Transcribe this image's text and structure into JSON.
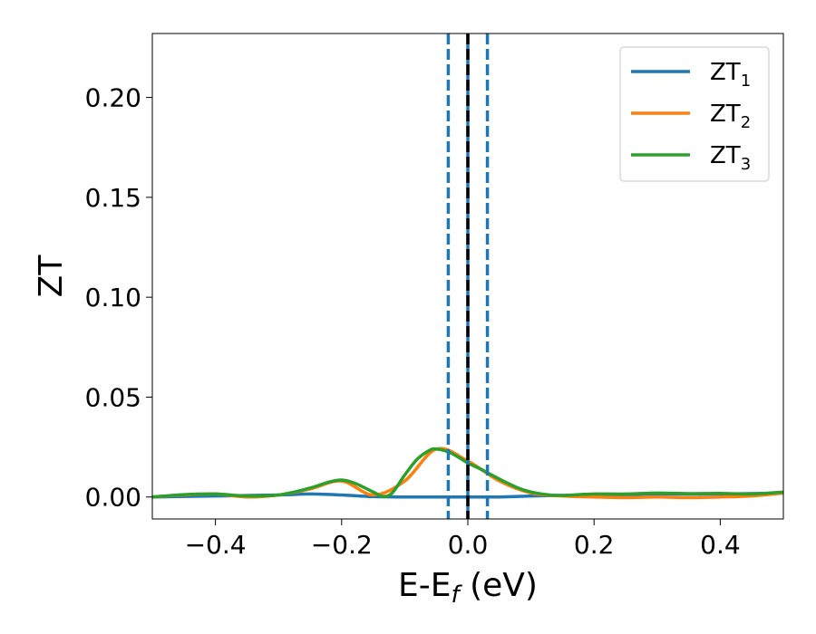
{
  "chart_data": {
    "type": "line",
    "xlabel": {
      "main": "E-E",
      "sub": "f",
      "suffix": " (eV)"
    },
    "ylabel": "ZT",
    "xlim": [
      -0.5,
      0.5
    ],
    "ylim": [
      -0.011,
      0.232
    ],
    "xticks": [
      {
        "value": -0.4,
        "label": "−0.4"
      },
      {
        "value": -0.2,
        "label": "−0.2"
      },
      {
        "value": 0.0,
        "label": "0.0"
      },
      {
        "value": 0.2,
        "label": "0.2"
      },
      {
        "value": 0.4,
        "label": "0.4"
      }
    ],
    "yticks": [
      {
        "value": 0.0,
        "label": "0.00"
      },
      {
        "value": 0.05,
        "label": "0.05"
      },
      {
        "value": 0.1,
        "label": "0.10"
      },
      {
        "value": 0.15,
        "label": "0.15"
      },
      {
        "value": 0.2,
        "label": "0.20"
      }
    ],
    "grid": false,
    "legend_position": "top-right",
    "vlines": [
      {
        "x": -0.031,
        "style": "dashed",
        "color": "#1f77b4"
      },
      {
        "x": 0.031,
        "style": "dashed",
        "color": "#1f77b4"
      },
      {
        "x": 0.0,
        "style": "solid",
        "color": "#1f77b4"
      },
      {
        "x": 0.0,
        "style": "dashed",
        "color": "#000000"
      }
    ],
    "series": [
      {
        "name": "ZT",
        "sub": "1",
        "color": "#1f77b4",
        "x": [
          -0.5,
          -0.4,
          -0.3,
          -0.25,
          -0.2,
          -0.15,
          -0.1,
          -0.05,
          0.0,
          0.05,
          0.1,
          0.15,
          0.2,
          0.25,
          0.3,
          0.4,
          0.5
        ],
        "y": [
          0.0,
          0.0005,
          0.001,
          0.0015,
          0.001,
          0.0002,
          0.0,
          0.0,
          0.0,
          0.0,
          0.0005,
          0.0008,
          0.001,
          0.0012,
          0.0015,
          0.0015,
          0.002
        ]
      },
      {
        "name": "ZT",
        "sub": "2",
        "color": "#ff7f0e",
        "x": [
          -0.5,
          -0.45,
          -0.4,
          -0.35,
          -0.3,
          -0.25,
          -0.2,
          -0.15,
          -0.1,
          -0.05,
          0.0,
          0.05,
          0.1,
          0.15,
          0.2,
          0.25,
          0.3,
          0.35,
          0.4,
          0.45,
          0.5
        ],
        "y": [
          0.0,
          0.001,
          0.0015,
          0.0,
          0.001,
          0.004,
          0.008,
          0.001,
          0.008,
          0.024,
          0.018,
          0.008,
          0.002,
          0.0005,
          0.0,
          -0.0003,
          0.0,
          -0.0003,
          0.0,
          0.0005,
          0.002
        ]
      },
      {
        "name": "ZT",
        "sub": "3",
        "color": "#2ca02c",
        "x": [
          -0.5,
          -0.45,
          -0.4,
          -0.35,
          -0.3,
          -0.25,
          -0.22,
          -0.2,
          -0.18,
          -0.15,
          -0.135,
          -0.12,
          -0.1,
          -0.08,
          -0.06,
          -0.05,
          -0.03,
          -0.01,
          0.0,
          0.02,
          0.05,
          0.08,
          0.1,
          0.13,
          0.15,
          0.2,
          0.25,
          0.3,
          0.35,
          0.4,
          0.45,
          0.5
        ],
        "y": [
          0.0,
          0.0012,
          0.0015,
          0.0005,
          0.001,
          0.0045,
          0.0075,
          0.0085,
          0.007,
          0.0025,
          0.0003,
          0.002,
          0.011,
          0.019,
          0.0235,
          0.024,
          0.0225,
          0.019,
          0.017,
          0.014,
          0.009,
          0.0045,
          0.0025,
          0.001,
          0.0008,
          0.0015,
          0.0015,
          0.002,
          0.0017,
          0.0018,
          0.0015,
          0.0025
        ]
      }
    ]
  }
}
